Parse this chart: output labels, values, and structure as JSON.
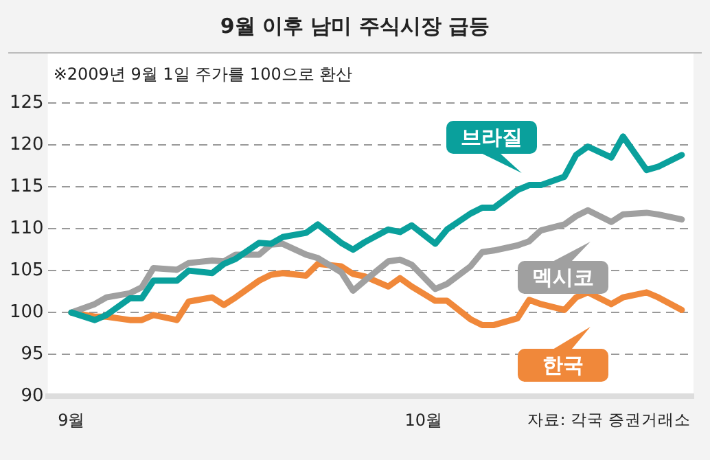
{
  "chart_data": {
    "type": "line",
    "title": "9월 이후 남미 주식시장 급등",
    "subtitle": "※2009년 9월 1일 주가를 100으로 환산",
    "annotations": [
      "자료: 각국 증권거래소"
    ],
    "x": [
      "2009-09-01",
      "2009-09-03",
      "2009-09-04",
      "2009-09-06",
      "2009-09-07",
      "2009-09-08",
      "2009-09-10",
      "2009-09-11",
      "2009-09-13",
      "2009-09-14",
      "2009-09-15",
      "2009-09-17",
      "2009-09-18",
      "2009-09-19",
      "2009-09-21",
      "2009-09-22",
      "2009-09-24",
      "2009-09-25",
      "2009-09-26",
      "2009-09-28",
      "2009-09-29",
      "2009-09-30",
      "2009-10-02",
      "2009-10-03",
      "2009-10-05",
      "2009-10-06",
      "2009-10-07",
      "2009-10-09",
      "2009-10-10",
      "2009-10-11",
      "2009-10-13",
      "2009-10-14",
      "2009-10-15",
      "2009-10-17",
      "2009-10-18",
      "2009-10-20",
      "2009-10-21",
      "2009-10-23"
    ],
    "series": [
      {
        "name": "브라질",
        "color": "#0aa09c",
        "values": [
          100,
          99.1,
          99.7,
          101.7,
          101.7,
          103.8,
          103.8,
          105,
          104.7,
          105.8,
          106.4,
          108.3,
          108.2,
          109,
          109.5,
          110.5,
          108.3,
          107.5,
          108.4,
          109.9,
          109.6,
          110.4,
          108.2,
          109.9,
          111.8,
          112.5,
          112.5,
          114.6,
          115.2,
          115.2,
          116.2,
          118.8,
          119.8,
          118.5,
          121,
          117,
          117.4,
          118.8
        ]
      },
      {
        "name": "멕시코",
        "color": "#a0a0a0",
        "values": [
          100,
          101,
          101.8,
          102.3,
          103,
          105.3,
          105.1,
          105.9,
          106.2,
          106.1,
          106.9,
          106.9,
          108.1,
          108.2,
          106.9,
          106.5,
          104.8,
          102.6,
          103.8,
          106.1,
          106.3,
          105.7,
          102.8,
          103.4,
          105.5,
          107.2,
          107.4,
          108,
          108.5,
          109.8,
          110.5,
          111.5,
          112.2,
          110.8,
          111.7,
          111.9,
          111.7,
          111.1
        ]
      },
      {
        "name": "한국",
        "color": "#f0883a",
        "values": [
          100,
          99.5,
          99.5,
          99.1,
          99.1,
          99.7,
          99.1,
          101.3,
          101.8,
          100.9,
          101.8,
          103.8,
          104.5,
          104.7,
          104.4,
          105.8,
          105.5,
          104.6,
          104.3,
          103.1,
          104.1,
          103.1,
          101.4,
          101.4,
          99.2,
          98.5,
          98.5,
          99.3,
          101.5,
          101,
          100.3,
          101.8,
          102.4,
          101,
          101.8,
          102.4,
          101.8,
          100.3
        ]
      }
    ],
    "xlim": [
      "2009-08-30",
      "2009-10-24"
    ],
    "xticks": [
      {
        "value": "2009-09-01",
        "label": "9월"
      },
      {
        "value": "2009-10-01",
        "label": "10월"
      }
    ],
    "ylim": [
      90,
      125
    ],
    "yticks": [
      90,
      95,
      100,
      105,
      110,
      115,
      120,
      125
    ],
    "grid": "y",
    "line_style": "solid",
    "marker": "none",
    "legend": "right"
  }
}
